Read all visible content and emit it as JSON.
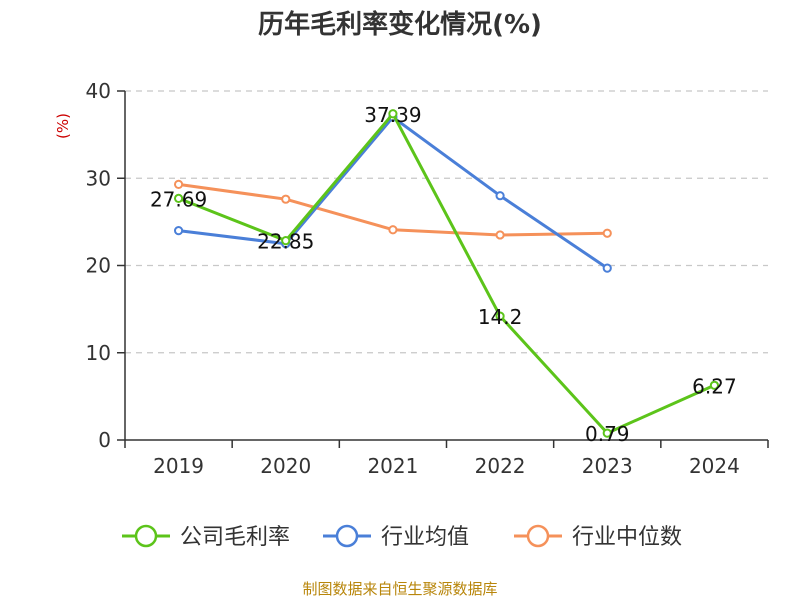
{
  "chart_data": {
    "type": "line",
    "title": "历年毛利率变化情况(%)",
    "ylabel": "(%)",
    "xlabel": "",
    "categories": [
      "2019",
      "2020",
      "2021",
      "2022",
      "2023",
      "2024"
    ],
    "ylim": [
      0,
      40
    ],
    "yticks": [
      0,
      10,
      20,
      30,
      40
    ],
    "grid": true,
    "legend_position": "bottom",
    "series": [
      {
        "name": "公司毛利率",
        "color": "#5cc41a",
        "values": [
          27.69,
          22.85,
          37.39,
          14.2,
          0.79,
          6.27
        ],
        "labels": [
          "27.69",
          "22.85",
          "37.39",
          "14.2",
          "0.79",
          "6.27"
        ]
      },
      {
        "name": "行业均值",
        "color": "#4a7fd8",
        "values": [
          24.0,
          22.5,
          37.0,
          28.0,
          19.7,
          null
        ],
        "labels": []
      },
      {
        "name": "行业中位数",
        "color": "#f5915a",
        "values": [
          29.3,
          27.6,
          24.1,
          23.5,
          23.7,
          null
        ],
        "labels": []
      }
    ]
  },
  "source": "制图数据来自恒生聚源数据库"
}
